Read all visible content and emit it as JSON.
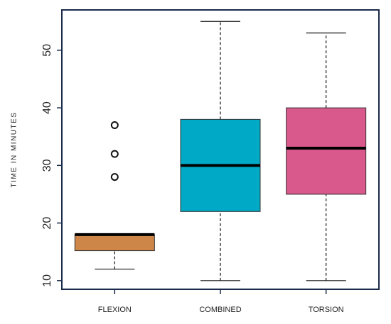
{
  "chart_data": {
    "type": "box",
    "ylabel": "TIME IN MINUTES",
    "categories": [
      "FLEXION",
      "COMBINED",
      "TORSION"
    ],
    "boxes": [
      {
        "whislo": 12,
        "q1": 15.2,
        "med": 18,
        "q3": 18,
        "whishi": 18,
        "fliers": [
          28,
          32,
          37
        ],
        "color": "#cd8548"
      },
      {
        "whislo": 10,
        "q1": 22,
        "med": 30,
        "q3": 38,
        "whishi": 55,
        "fliers": [],
        "color": "#00a9c5"
      },
      {
        "whislo": 10,
        "q1": 25,
        "med": 33,
        "q3": 40,
        "whishi": 53,
        "fliers": [],
        "color": "#d9598c"
      }
    ],
    "ylim": [
      8.5,
      57
    ],
    "yticks": [
      10,
      20,
      30,
      40,
      50
    ]
  }
}
